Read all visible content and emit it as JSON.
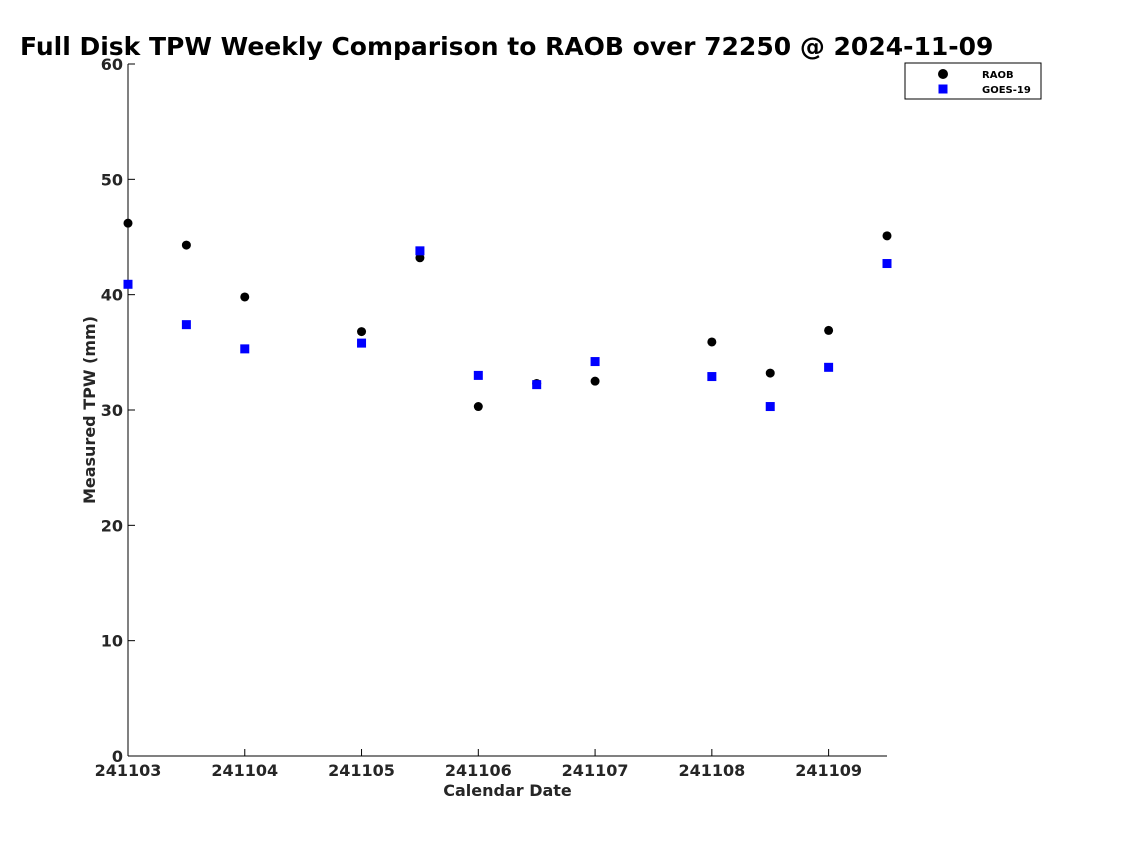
{
  "chart_data": {
    "type": "scatter",
    "title": "Full Disk TPW Weekly Comparison to RAOB over 72250 @ 2024-11-09",
    "xlabel": "Calendar Date",
    "ylabel": "Measured TPW (mm)",
    "xlim": [
      0,
      6.5
    ],
    "ylim": [
      0,
      60
    ],
    "x_ticks": [
      0,
      1,
      2,
      3,
      4,
      5,
      6
    ],
    "x_tick_labels": [
      "241103",
      "241104",
      "241105",
      "241106",
      "241107",
      "241108",
      "241109"
    ],
    "y_ticks": [
      0,
      10,
      20,
      30,
      40,
      50,
      60
    ],
    "y_tick_labels": [
      "0",
      "10",
      "20",
      "30",
      "40",
      "50",
      "60"
    ],
    "legend_position": "top-right",
    "series": [
      {
        "name": "RAOB",
        "marker": "circle",
        "color": "#000000",
        "points": [
          {
            "x": 0.0,
            "y": 46.2
          },
          {
            "x": 0.5,
            "y": 44.3
          },
          {
            "x": 1.0,
            "y": 39.8
          },
          {
            "x": 2.0,
            "y": 36.8
          },
          {
            "x": 2.5,
            "y": 43.2
          },
          {
            "x": 3.0,
            "y": 30.3
          },
          {
            "x": 3.5,
            "y": 32.3
          },
          {
            "x": 4.0,
            "y": 32.5
          },
          {
            "x": 5.0,
            "y": 35.9
          },
          {
            "x": 5.5,
            "y": 33.2
          },
          {
            "x": 6.0,
            "y": 36.9
          },
          {
            "x": 6.5,
            "y": 45.1
          }
        ]
      },
      {
        "name": "GOES-19",
        "marker": "square",
        "color": "#0000ff",
        "points": [
          {
            "x": 0.0,
            "y": 40.9
          },
          {
            "x": 0.5,
            "y": 37.4
          },
          {
            "x": 1.0,
            "y": 35.3
          },
          {
            "x": 2.0,
            "y": 35.8
          },
          {
            "x": 2.5,
            "y": 43.8
          },
          {
            "x": 3.0,
            "y": 33.0
          },
          {
            "x": 3.5,
            "y": 32.2
          },
          {
            "x": 4.0,
            "y": 34.2
          },
          {
            "x": 5.0,
            "y": 32.9
          },
          {
            "x": 5.5,
            "y": 30.3
          },
          {
            "x": 6.0,
            "y": 33.7
          },
          {
            "x": 6.5,
            "y": 42.7
          }
        ]
      }
    ]
  }
}
